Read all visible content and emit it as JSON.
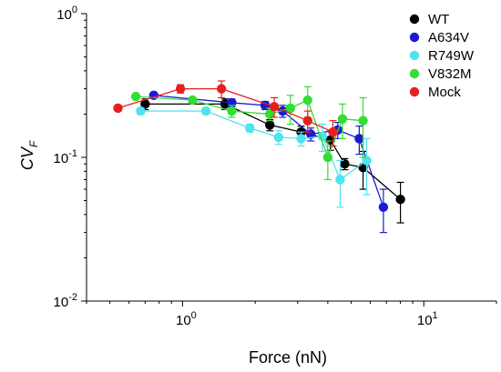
{
  "chart_data": {
    "type": "scatter",
    "xlabel": "Force (nN)",
    "ylabel": "CV",
    "ylabel_subscript": "F",
    "xscale": "log",
    "yscale": "log",
    "xlim": [
      0.4,
      20
    ],
    "ylim": [
      0.01,
      1
    ],
    "x_ticks": [
      {
        "value": 1,
        "base": "10",
        "exp": "0"
      },
      {
        "value": 10,
        "base": "10",
        "exp": "1"
      }
    ],
    "y_ticks": [
      {
        "value": 1,
        "base": "10",
        "exp": "0"
      },
      {
        "value": 0.1,
        "base": "10",
        "exp": "-1"
      },
      {
        "value": 0.01,
        "base": "10",
        "exp": "-2"
      }
    ],
    "legend_position": "top-right",
    "series": [
      {
        "name": "WT",
        "color": "#000000",
        "points": [
          {
            "x": 0.7,
            "y": 0.235,
            "err": 0.02
          },
          {
            "x": 1.5,
            "y": 0.235,
            "err": 0.02
          },
          {
            "x": 2.3,
            "y": 0.168,
            "err": 0.015
          },
          {
            "x": 3.1,
            "y": 0.15,
            "err": 0.015
          },
          {
            "x": 4.1,
            "y": 0.132,
            "err": 0.02
          },
          {
            "x": 4.7,
            "y": 0.09,
            "err": 0.008
          },
          {
            "x": 5.6,
            "y": 0.085,
            "err": 0.025
          },
          {
            "x": 8.0,
            "y": 0.051,
            "err": 0.016
          }
        ]
      },
      {
        "name": "A634V",
        "color": "#1a1ad1",
        "points": [
          {
            "x": 0.76,
            "y": 0.27,
            "err": 0.01
          },
          {
            "x": 1.6,
            "y": 0.24,
            "err": 0.015
          },
          {
            "x": 2.2,
            "y": 0.23,
            "err": 0.015
          },
          {
            "x": 2.6,
            "y": 0.21,
            "err": 0.02
          },
          {
            "x": 3.4,
            "y": 0.145,
            "err": 0.015
          },
          {
            "x": 4.4,
            "y": 0.155,
            "err": 0.02
          },
          {
            "x": 5.4,
            "y": 0.135,
            "err": 0.03
          },
          {
            "x": 6.8,
            "y": 0.045,
            "err": 0.015
          }
        ]
      },
      {
        "name": "R749W",
        "color": "#4fe3f0",
        "points": [
          {
            "x": 0.67,
            "y": 0.21,
            "err": 0.01
          },
          {
            "x": 1.25,
            "y": 0.21,
            "err": 0.01
          },
          {
            "x": 1.9,
            "y": 0.16,
            "err": 0.01
          },
          {
            "x": 2.5,
            "y": 0.138,
            "err": 0.015
          },
          {
            "x": 3.1,
            "y": 0.135,
            "err": 0.015
          },
          {
            "x": 3.8,
            "y": 0.14,
            "err": 0.03
          },
          {
            "x": 4.5,
            "y": 0.07,
            "err": 0.025
          },
          {
            "x": 5.8,
            "y": 0.095,
            "err": 0.04
          }
        ]
      },
      {
        "name": "V832M",
        "color": "#33dd33",
        "points": [
          {
            "x": 0.64,
            "y": 0.265,
            "err": 0.01
          },
          {
            "x": 1.1,
            "y": 0.25,
            "err": 0.01
          },
          {
            "x": 1.6,
            "y": 0.21,
            "err": 0.02
          },
          {
            "x": 2.3,
            "y": 0.2,
            "err": 0.02
          },
          {
            "x": 2.8,
            "y": 0.22,
            "err": 0.05
          },
          {
            "x": 3.3,
            "y": 0.25,
            "err": 0.06
          },
          {
            "x": 4.0,
            "y": 0.1,
            "err": 0.03
          },
          {
            "x": 4.6,
            "y": 0.185,
            "err": 0.05
          },
          {
            "x": 5.6,
            "y": 0.18,
            "err": 0.08
          }
        ]
      },
      {
        "name": "Mock",
        "color": "#e81e1e",
        "points": [
          {
            "x": 0.54,
            "y": 0.22,
            "err": 0.01
          },
          {
            "x": 0.98,
            "y": 0.3,
            "err": 0.02
          },
          {
            "x": 1.45,
            "y": 0.3,
            "err": 0.04
          },
          {
            "x": 2.4,
            "y": 0.225,
            "err": 0.035
          },
          {
            "x": 3.3,
            "y": 0.18,
            "err": 0.03
          },
          {
            "x": 4.2,
            "y": 0.15,
            "err": 0.03
          }
        ]
      }
    ]
  }
}
